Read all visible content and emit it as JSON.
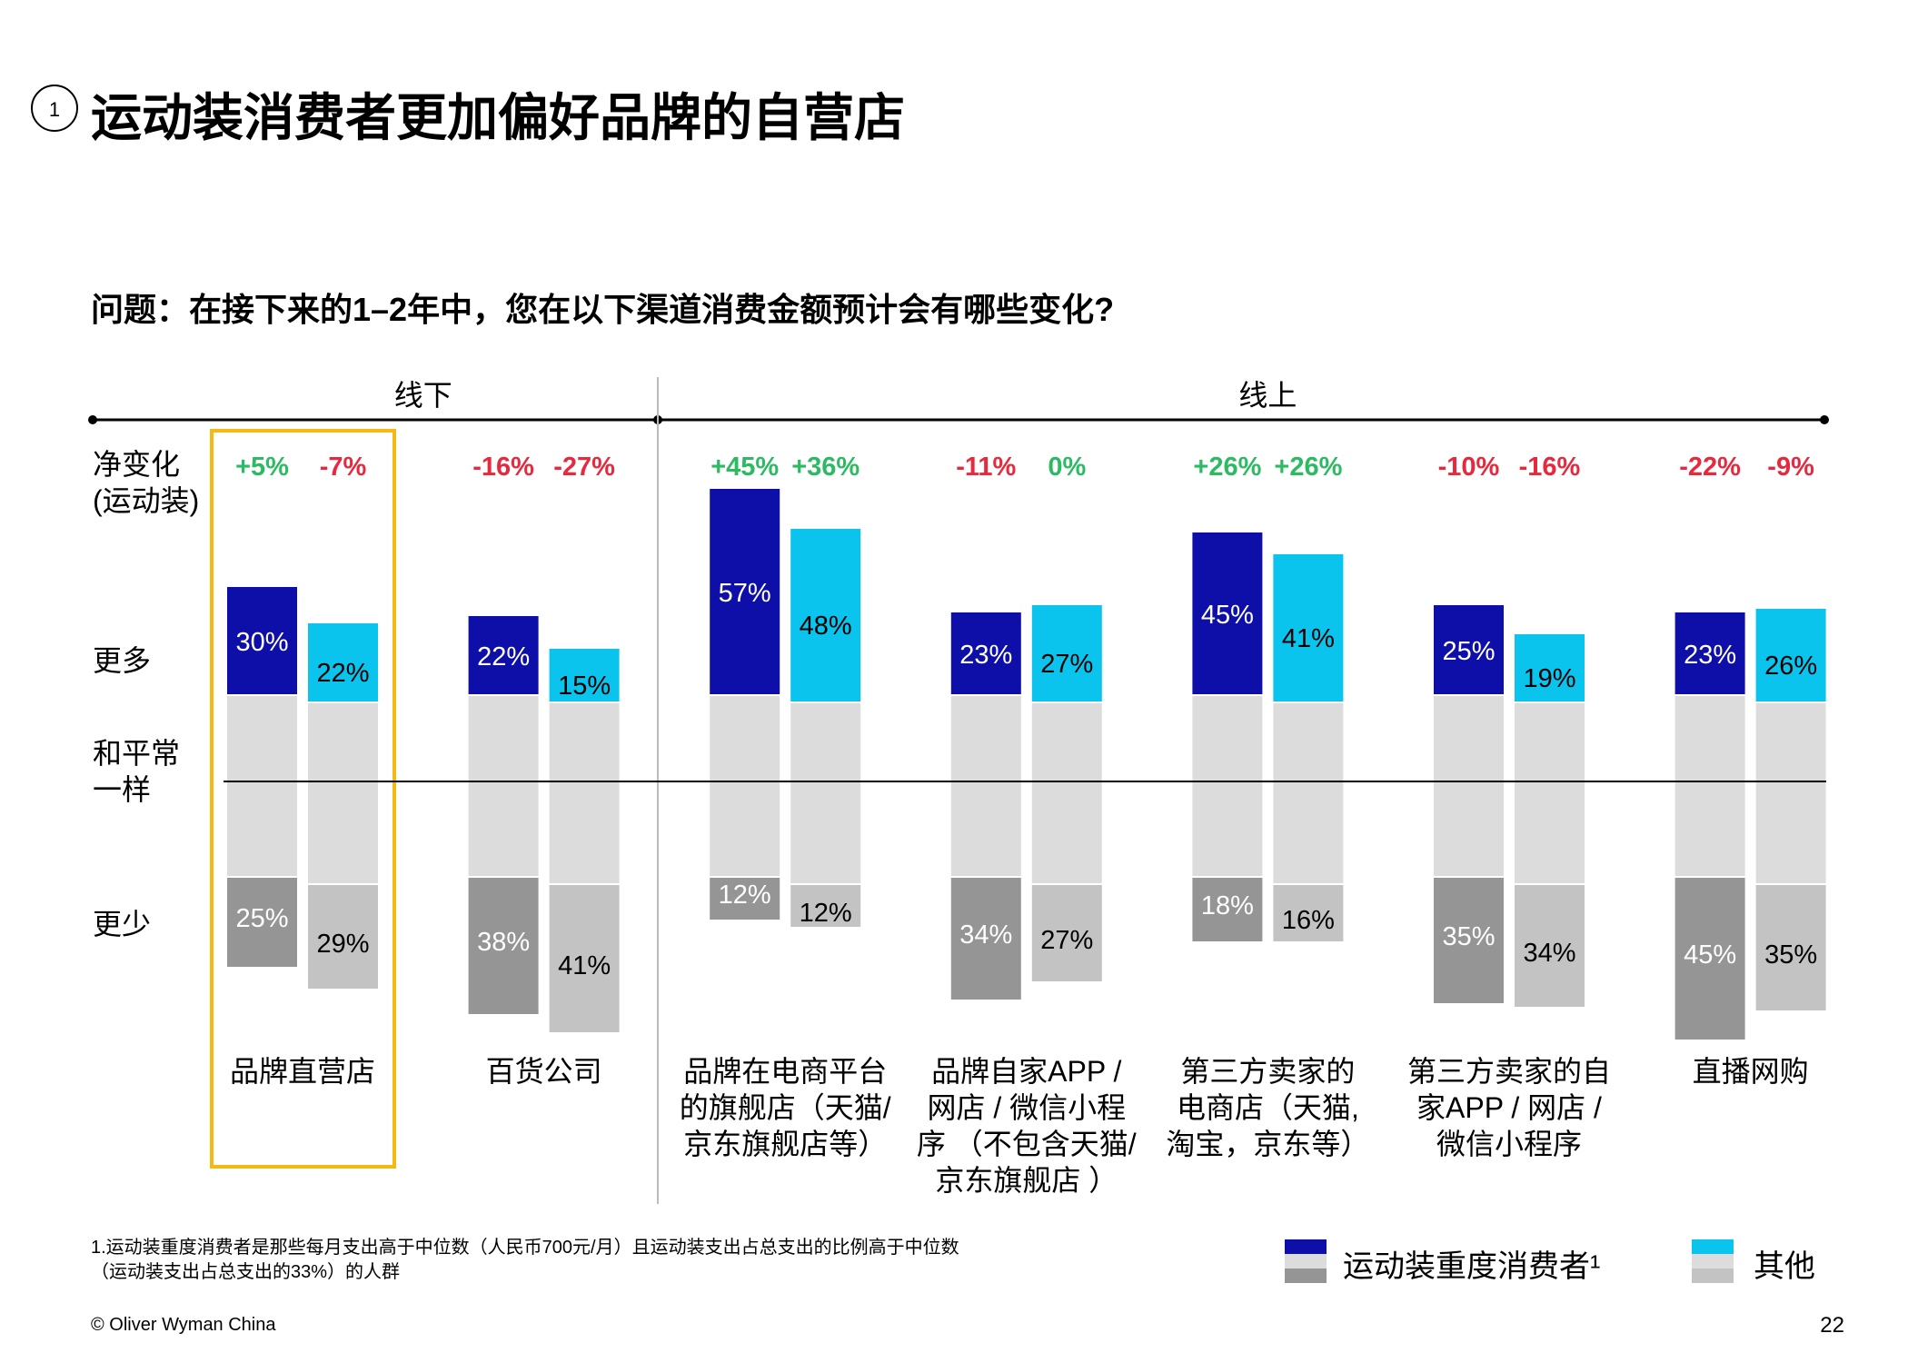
{
  "title_badge": "1",
  "title": "运动装消费者更加偏好品牌的自营店",
  "question": "问题：在接下来的1–2年中，您在以下渠道消费金额预计会有哪些变化?",
  "footnote": "1.运动装重度消费者是那些每月支出高于中位数（人民币700元/月）且运动装支出占总支出的比例高于中位数\n（运动装支出占总支出的33%）的人群",
  "copyright": "© Oliver Wyman China",
  "page_number": "22",
  "legend": {
    "heavy": "运动装重度消费者¹",
    "other": "其他"
  },
  "colors": {
    "heavy_more": "#0d0fa8",
    "other_more": "#0ac4ee",
    "heavy_same": "#dcdcdc",
    "other_same": "#dcdcdc",
    "heavy_less": "#959595",
    "other_less": "#c3c3c3",
    "positive": "#2cba62",
    "negative": "#e8283c",
    "highlight": "#f5b914"
  },
  "chart_data": {
    "type": "bar",
    "subtype": "diverging-stacked",
    "groups": [
      {
        "label": "线下",
        "span": [
          0,
          1
        ]
      },
      {
        "label": "线上",
        "span": [
          2,
          6
        ]
      }
    ],
    "row_labels": {
      "net": "净变化\n(运动装)",
      "more": "更多",
      "same": "和平常\n一样",
      "less": "更少"
    },
    "series": [
      {
        "name": "运动装重度消费者",
        "key": "heavy"
      },
      {
        "name": "其他",
        "key": "other"
      }
    ],
    "highlighted_category": 0,
    "categories": [
      {
        "label": "品牌直营店",
        "heavy": {
          "more": 30,
          "less": 25,
          "net": "+5%",
          "more_label": "30%",
          "less_label": "25%"
        },
        "other": {
          "more": 22,
          "less": 29,
          "net": "-7%",
          "more_label": "22%",
          "less_label": "29%"
        }
      },
      {
        "label": "百货公司",
        "heavy": {
          "more": 22,
          "less": 38,
          "net": "-16%",
          "more_label": "22%",
          "less_label": "38%"
        },
        "other": {
          "more": 15,
          "less": 41,
          "net": "-27%",
          "more_label": "15%",
          "less_label": "41%"
        }
      },
      {
        "label": "品牌在电商平台\n的旗舰店（天猫/\n京东旗舰店等）",
        "heavy": {
          "more": 57,
          "less": 12,
          "net": "+45%",
          "more_label": "57%",
          "less_label": "12%"
        },
        "other": {
          "more": 48,
          "less": 12,
          "net": "+36%",
          "more_label": "48%",
          "less_label": "12%"
        }
      },
      {
        "label": "品牌自家APP /\n网店 / 微信小程\n序 （不包含天猫/\n京东旗舰店 ）",
        "heavy": {
          "more": 23,
          "less": 34,
          "net": "-11%",
          "more_label": "23%",
          "less_label": "34%"
        },
        "other": {
          "more": 27,
          "less": 27,
          "net": "0%",
          "more_label": "27%",
          "less_label": "27%"
        }
      },
      {
        "label": "第三方卖家的\n电商店（天猫,\n淘宝，京东等）",
        "heavy": {
          "more": 45,
          "less": 18,
          "net": "+26%",
          "more_label": "45%",
          "less_label": "18%"
        },
        "other": {
          "more": 41,
          "less": 16,
          "net": "+26%",
          "more_label": "41%",
          "less_label": "16%"
        }
      },
      {
        "label": "第三方卖家的自\n家APP / 网店 /\n微信小程序",
        "heavy": {
          "more": 25,
          "less": 35,
          "net": "-10%",
          "more_label": "25%",
          "less_label": "35%"
        },
        "other": {
          "more": 19,
          "less": 34,
          "net": "-16%",
          "more_label": "19%",
          "less_label": "34%"
        }
      },
      {
        "label": "直播网购",
        "heavy": {
          "more": 23,
          "less": 45,
          "net": "-22%",
          "more_label": "23%",
          "less_label": "45%"
        },
        "other": {
          "more": 26,
          "less": 35,
          "net": "-9%",
          "more_label": "26%",
          "less_label": "35%"
        }
      }
    ]
  }
}
